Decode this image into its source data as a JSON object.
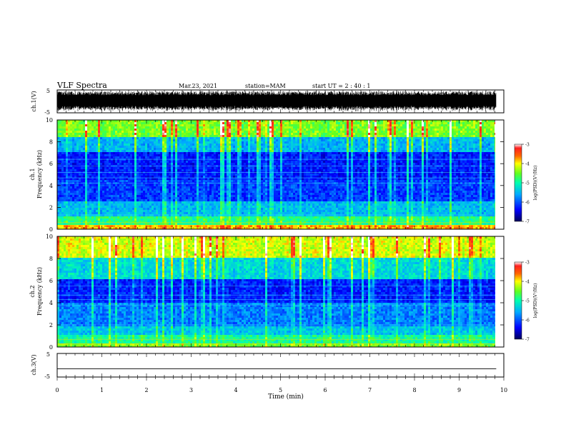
{
  "header": {
    "title": "VLF Spectra",
    "date": "Mar.23, 2021",
    "station": "station=MAM",
    "start": "start UT =  2 : 40 : 1"
  },
  "chart_data": [
    {
      "type": "line",
      "panel": "ch1-waveform",
      "ylabel": "ch.1(V)",
      "ylim": [
        -5,
        5
      ],
      "yticks": [
        "5",
        "-5"
      ],
      "xlim": [
        0,
        10
      ],
      "description_level": "dense waveform, amplitude near full scale"
    },
    {
      "type": "heatmap",
      "panel": "ch1-spectrogram",
      "ylabel": "ch.1\nFrequency  (kHz)",
      "ylabel_lines": [
        "ch.1",
        "Frequency  (kHz)"
      ],
      "ylim": [
        0,
        10
      ],
      "yticks": [
        "0",
        "2",
        "4",
        "6",
        "8",
        "10"
      ],
      "xlim": [
        0,
        9.83
      ],
      "colorbar": {
        "label": "log(PSD)(V²/Hz)",
        "range": [
          -7,
          -3
        ],
        "ticks": [
          "-3",
          "-4",
          "-5",
          "-6",
          "-7"
        ]
      }
    },
    {
      "type": "heatmap",
      "panel": "ch2-spectrogram",
      "ylabel_lines": [
        "ch.2",
        "Frequency  (kHz)"
      ],
      "ylim": [
        0,
        10
      ],
      "yticks": [
        "0",
        "2",
        "4",
        "6",
        "8",
        "10"
      ],
      "xlim": [
        0,
        9.83
      ],
      "colorbar": {
        "label": "log(PSD)(V²/Hz)",
        "range": [
          -7,
          -3
        ],
        "ticks": [
          "-3",
          "-4",
          "-5",
          "-6",
          "-7"
        ]
      }
    },
    {
      "type": "line",
      "panel": "ch3-waveform",
      "ylabel": "ch.3(V)",
      "ylim": [
        -5,
        5
      ],
      "yticks": [
        "5",
        "-5"
      ],
      "x": [
        0,
        9.83
      ],
      "y": [
        -1.5,
        -1.5
      ]
    }
  ],
  "xaxis": {
    "label": "Time  (min)",
    "ticks": [
      "0",
      "1",
      "2",
      "3",
      "4",
      "5",
      "6",
      "7",
      "8",
      "9",
      "10"
    ],
    "range": [
      0,
      10
    ]
  },
  "colors": {
    "scale": [
      "#00007f",
      "#0000ff",
      "#00aaff",
      "#00ffcc",
      "#44ff44",
      "#ffff00",
      "#ff8800",
      "#ff0000",
      "#ffffff"
    ]
  }
}
